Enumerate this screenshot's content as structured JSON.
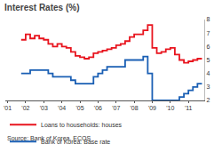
{
  "chart_data": {
    "type": "line",
    "title": "Interest Rates (%)",
    "source": "Source: Bank of Korea, ECOS",
    "categories": [
      "'01",
      null,
      null,
      null,
      "'02",
      null,
      null,
      null,
      "'03",
      null,
      null,
      null,
      "'04",
      null,
      null,
      null,
      "'05",
      null,
      null,
      null,
      "'06",
      null,
      null,
      null,
      "'07",
      null,
      null,
      null,
      "'08",
      null,
      null,
      null,
      "'09",
      null,
      null,
      null,
      "'10",
      null,
      null,
      null,
      "'11",
      null,
      null,
      null
    ],
    "series": [
      {
        "name": "Loans to households: houses",
        "color": "#e8141e",
        "values": [
          null,
          null,
          null,
          6.5,
          6.9,
          6.6,
          6.8,
          6.6,
          6.5,
          6.2,
          6.0,
          6.2,
          6.0,
          5.9,
          5.6,
          5.3,
          5.2,
          5.1,
          5.2,
          5.5,
          5.6,
          5.7,
          5.8,
          5.9,
          6.1,
          6.2,
          6.4,
          6.7,
          6.9,
          6.9,
          7.2,
          7.6,
          5.9,
          5.5,
          5.6,
          5.8,
          5.9,
          5.4,
          5.0,
          4.8,
          4.9,
          5.0,
          5.1,
          5.1
        ]
      },
      {
        "name": "Bank of Korea: Base rate",
        "color": "#1a5fb4",
        "values": [
          null,
          null,
          null,
          4.0,
          4.0,
          4.25,
          4.25,
          4.25,
          4.25,
          4.0,
          3.75,
          3.75,
          3.75,
          3.75,
          3.5,
          3.25,
          3.25,
          3.25,
          3.25,
          3.75,
          4.0,
          4.25,
          4.5,
          4.5,
          4.5,
          4.5,
          5.0,
          5.0,
          5.0,
          5.0,
          5.25,
          4.0,
          2.0,
          2.0,
          2.0,
          2.0,
          2.0,
          2.0,
          2.25,
          2.5,
          2.75,
          3.0,
          3.25,
          3.25
        ]
      }
    ],
    "ylim": [
      2,
      8
    ],
    "yticks": [
      2,
      3,
      4,
      5,
      6,
      7,
      8
    ],
    "grid": false,
    "legend": "bottom"
  }
}
